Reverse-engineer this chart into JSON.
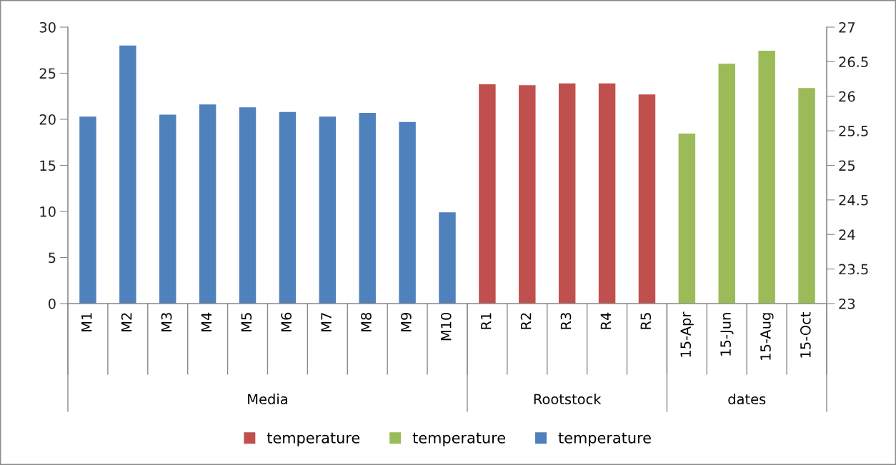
{
  "chart_data": {
    "type": "bar",
    "categories": [
      "M1",
      "M2",
      "M3",
      "M4",
      "M5",
      "M6",
      "M7",
      "M8",
      "M9",
      "M10",
      "R1",
      "R2",
      "R3",
      "R4",
      "R5",
      "15-Apr",
      "15-Jun",
      "15-Aug",
      "15-Oct"
    ],
    "series": [
      {
        "name": "temperature",
        "color": "#c0504d",
        "values": [
          null,
          null,
          null,
          null,
          null,
          null,
          null,
          null,
          null,
          null,
          23.8,
          23.7,
          23.9,
          23.9,
          22.7,
          null,
          null,
          null,
          null
        ]
      },
      {
        "name": "temperature",
        "color": "#9bbb59",
        "axis": "y2",
        "values": [
          null,
          null,
          null,
          null,
          null,
          null,
          null,
          null,
          null,
          null,
          null,
          null,
          null,
          null,
          null,
          25.46,
          26.47,
          26.66,
          26.12
        ]
      },
      {
        "name": "temperature",
        "color": "#4f81bd",
        "values": [
          20.3,
          28.0,
          20.5,
          21.6,
          21.3,
          20.8,
          20.3,
          20.7,
          19.7,
          9.9,
          null,
          null,
          null,
          null,
          null,
          null,
          null,
          null,
          null
        ]
      }
    ],
    "annotations": [
      "Media",
      "Rootstock",
      "dates"
    ],
    "ylim": [
      0,
      30
    ],
    "yticks": [
      0,
      5,
      10,
      15,
      20,
      25,
      30
    ],
    "y2lim": [
      23,
      27
    ],
    "y2ticks": [
      23,
      23.5,
      24,
      24.5,
      25,
      25.5,
      26,
      26.5,
      27
    ],
    "grid": false,
    "legend": "bottom"
  }
}
